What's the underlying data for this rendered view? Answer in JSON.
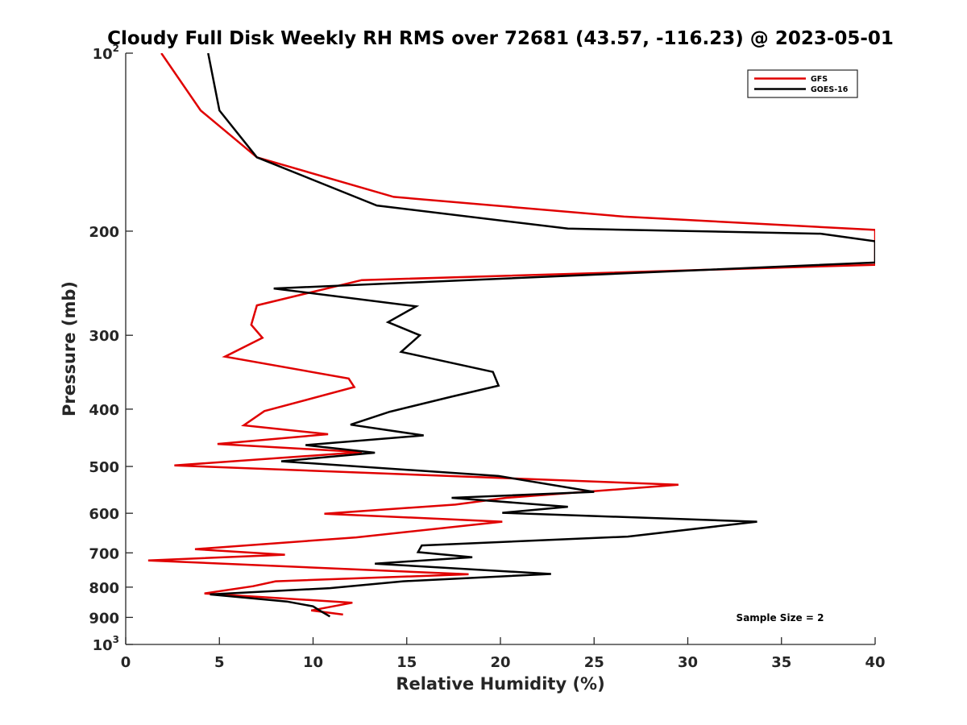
{
  "chart_data": {
    "type": "line",
    "title": "Cloudy Full Disk Weekly RH RMS over 72681 (43.57, -116.23) @ 2023-05-01",
    "xlabel": "Relative Humidity (%)",
    "ylabel": "Pressure (mb)",
    "xlim": [
      0,
      40
    ],
    "ylim": [
      100,
      1000
    ],
    "y_scale": "log",
    "y_reversed": true,
    "x_ticks": [
      0,
      5,
      10,
      15,
      20,
      25,
      30,
      35,
      40
    ],
    "y_ticks": [
      {
        "value": 100,
        "base": "10",
        "exp": "2"
      },
      {
        "value": 200,
        "label": "200"
      },
      {
        "value": 300,
        "label": "300"
      },
      {
        "value": 400,
        "label": "400"
      },
      {
        "value": 500,
        "label": "500"
      },
      {
        "value": 600,
        "label": "600"
      },
      {
        "value": 700,
        "label": "700"
      },
      {
        "value": 800,
        "label": "800"
      },
      {
        "value": 900,
        "label": "900"
      },
      {
        "value": 1000,
        "base": "10",
        "exp": "3"
      }
    ],
    "grid": false,
    "legend_position": "top-right",
    "series": [
      {
        "name": "GFS",
        "color": "#e00000",
        "points": [
          [
            1.9,
            100
          ],
          [
            4.0,
            125
          ],
          [
            7.0,
            150
          ],
          [
            14.3,
            175
          ],
          [
            26.6,
            189
          ],
          [
            40.0,
            199
          ],
          [
            40.0,
            228
          ],
          [
            12.6,
            242
          ],
          [
            7.0,
            267
          ],
          [
            6.7,
            288
          ],
          [
            7.3,
            303
          ],
          [
            5.3,
            326
          ],
          [
            11.9,
            355
          ],
          [
            12.2,
            367
          ],
          [
            7.4,
            403
          ],
          [
            6.3,
            426
          ],
          [
            10.8,
            441
          ],
          [
            4.9,
            458
          ],
          [
            12.6,
            473
          ],
          [
            2.6,
            498
          ],
          [
            29.5,
            537
          ],
          [
            20.3,
            565
          ],
          [
            17.6,
            580
          ],
          [
            10.6,
            601
          ],
          [
            20.1,
            620
          ],
          [
            12.3,
            659
          ],
          [
            3.7,
            690
          ],
          [
            8.5,
            705
          ],
          [
            1.2,
            721
          ],
          [
            18.3,
            761
          ],
          [
            8.0,
            782
          ],
          [
            6.8,
            797
          ],
          [
            4.2,
            820
          ],
          [
            12.1,
            850
          ],
          [
            9.9,
            876
          ],
          [
            11.6,
            890
          ]
        ]
      },
      {
        "name": "GOES-16",
        "color": "#000000",
        "points": [
          [
            4.4,
            100
          ],
          [
            5.0,
            125
          ],
          [
            7.0,
            150
          ],
          [
            13.4,
            181
          ],
          [
            23.6,
            198
          ],
          [
            37.1,
            202
          ],
          [
            40.0,
            208
          ],
          [
            40.0,
            226
          ],
          [
            7.9,
            250
          ],
          [
            15.5,
            268
          ],
          [
            14.0,
            285
          ],
          [
            15.7,
            300
          ],
          [
            14.7,
            320
          ],
          [
            19.6,
            346
          ],
          [
            19.9,
            365
          ],
          [
            17.4,
            381
          ],
          [
            14.1,
            404
          ],
          [
            12.0,
            425
          ],
          [
            15.9,
            443
          ],
          [
            9.6,
            460
          ],
          [
            13.3,
            474
          ],
          [
            8.3,
            490
          ],
          [
            19.9,
            519
          ],
          [
            25.0,
            552
          ],
          [
            17.4,
            565
          ],
          [
            23.6,
            585
          ],
          [
            20.1,
            599
          ],
          [
            33.7,
            620
          ],
          [
            26.8,
            657
          ],
          [
            15.8,
            680
          ],
          [
            15.6,
            698
          ],
          [
            18.5,
            712
          ],
          [
            13.3,
            730
          ],
          [
            22.7,
            760
          ],
          [
            14.8,
            782
          ],
          [
            10.9,
            803
          ],
          [
            4.5,
            823
          ],
          [
            8.6,
            846
          ],
          [
            10.0,
            862
          ],
          [
            10.4,
            878
          ],
          [
            10.9,
            897
          ]
        ]
      }
    ],
    "annotation": "Sample Size = 2"
  },
  "colors": {
    "axis": "#262626",
    "gfs": "#e00000",
    "goes": "#000000"
  }
}
